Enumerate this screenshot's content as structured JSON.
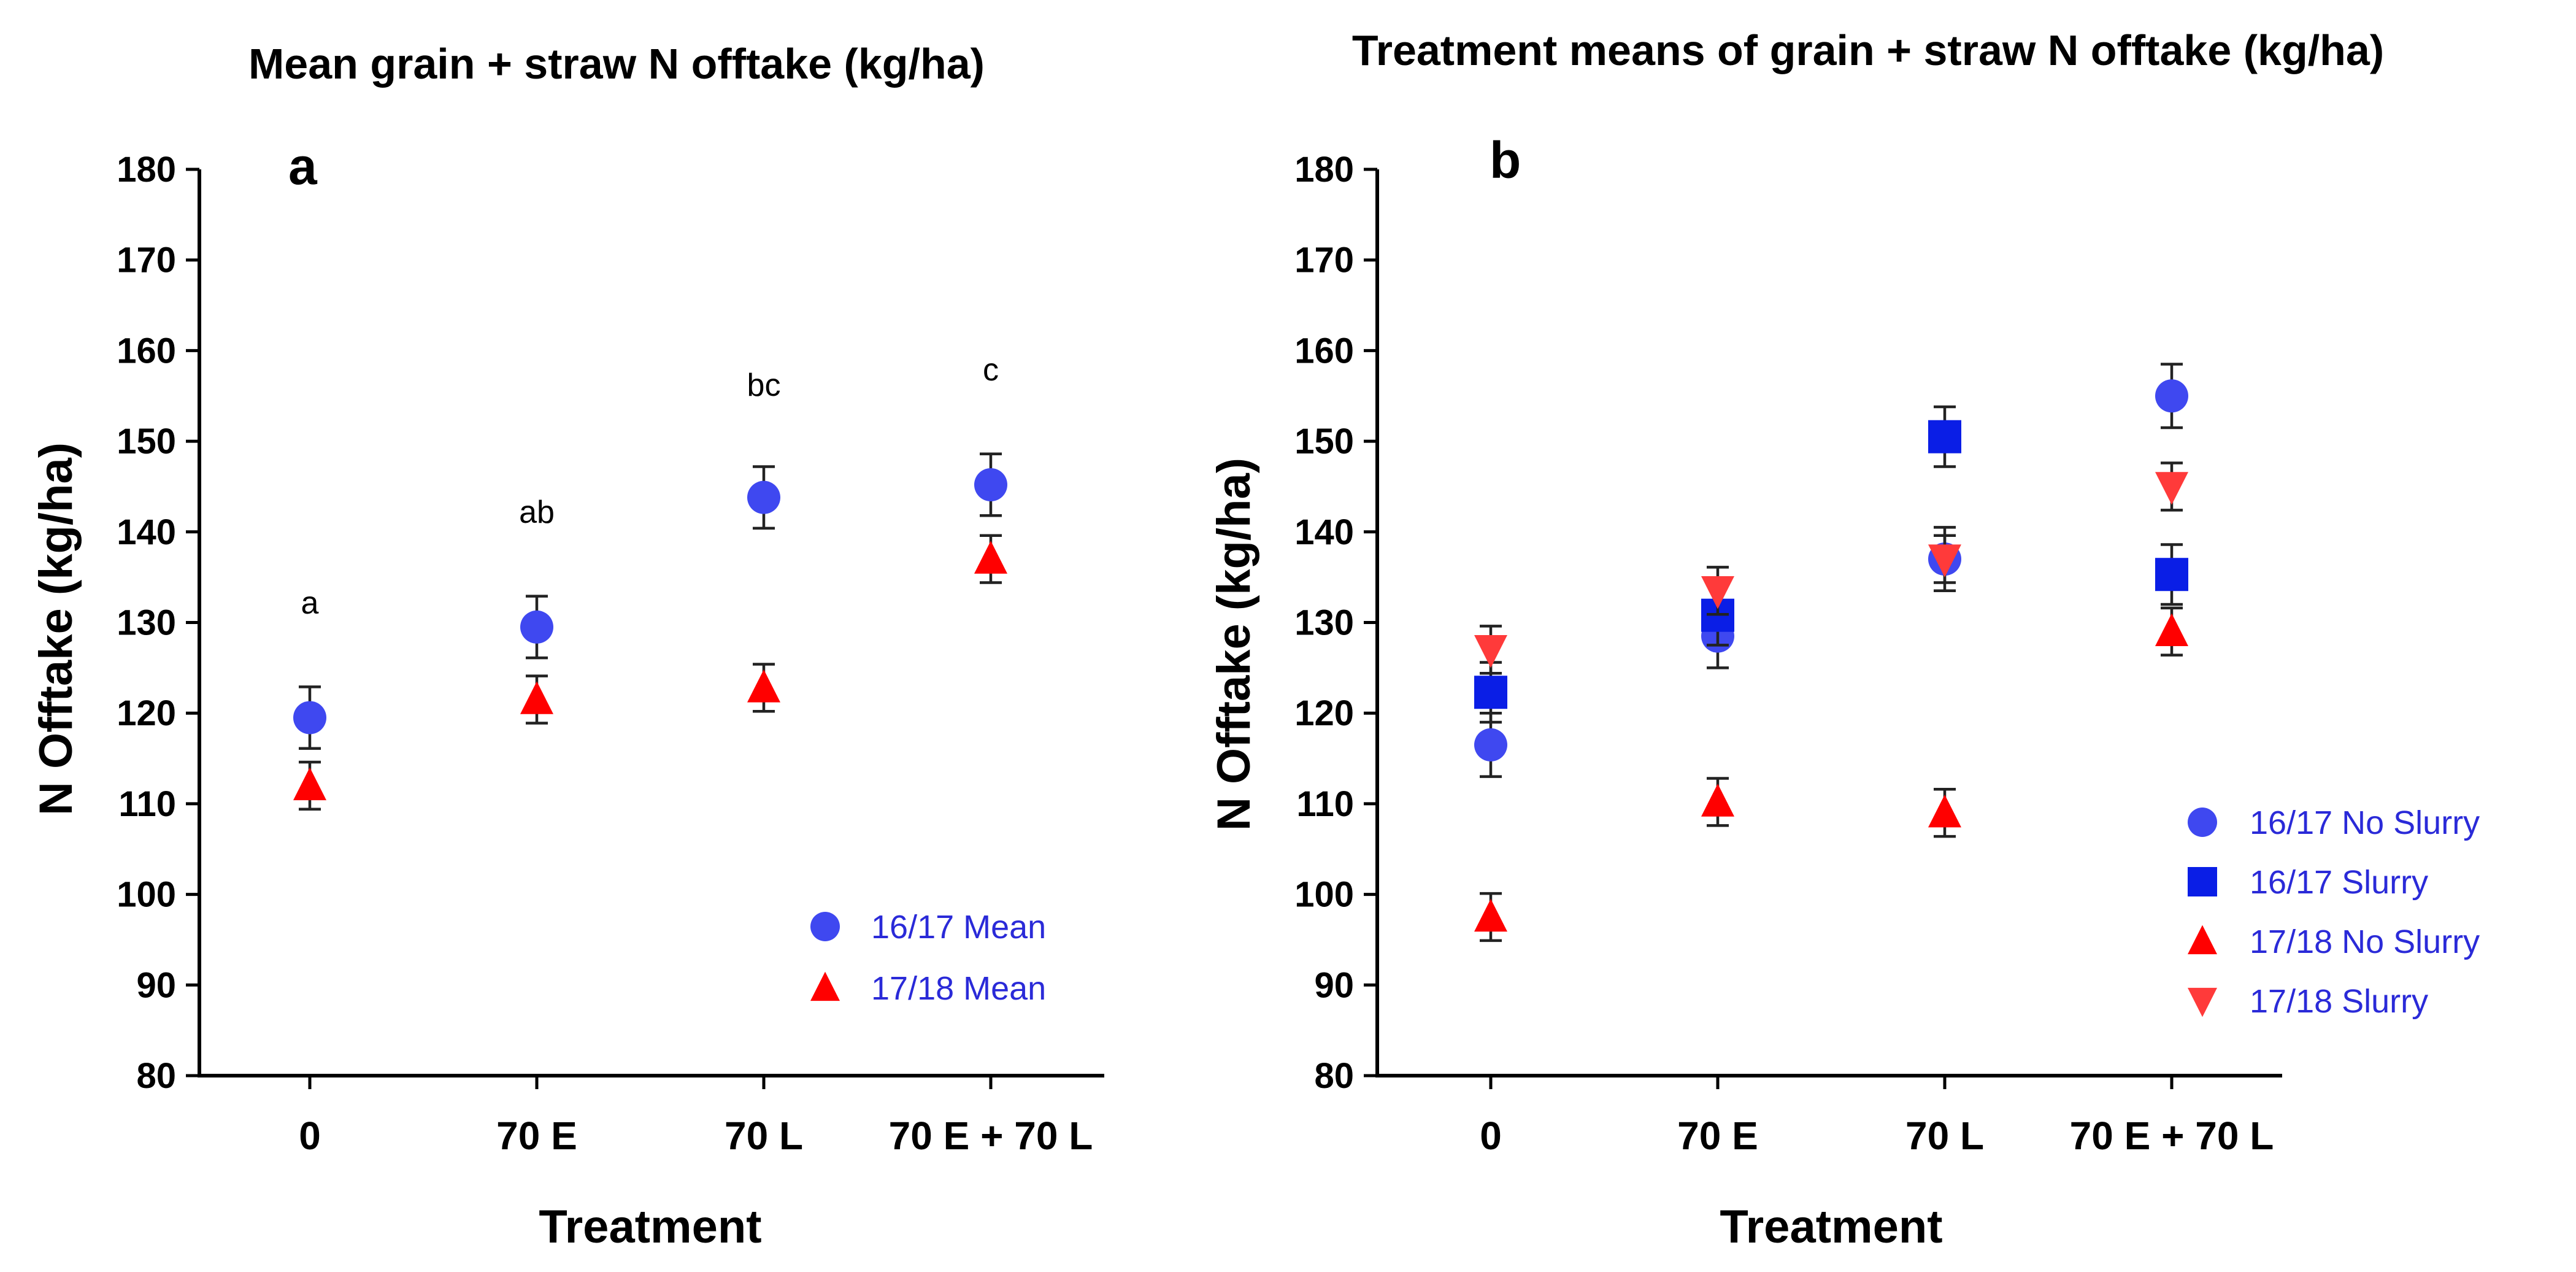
{
  "colors": {
    "circle": "#3f48f0",
    "square": "#0a1ee6",
    "triangle_up": "#ff0000",
    "triangle_down": "#ff3a3a",
    "legend_text": "#2a2ad8"
  },
  "chart_data": [
    {
      "type": "scatter",
      "panel_label": "a",
      "title": "Mean grain + straw N offtake (kg/ha)",
      "xlabel": "Treatment",
      "ylabel": "N Offtake (kg/ha)",
      "ylim": [
        80,
        180
      ],
      "yticks": [
        80,
        90,
        100,
        110,
        120,
        130,
        140,
        150,
        160,
        170,
        180
      ],
      "categories": [
        "0",
        "70 E",
        "70 L",
        "70 E + 70 L"
      ],
      "annotations": [
        "a",
        "ab",
        "bc",
        "c"
      ],
      "legend_position": "bottom-right",
      "series": [
        {
          "name": "16/17 Mean",
          "marker": "circle",
          "values": [
            119.5,
            129.5,
            143.8,
            145.2
          ],
          "errors": [
            3.4,
            3.4,
            3.4,
            3.4
          ]
        },
        {
          "name": "17/18 Mean",
          "marker": "triangle-up",
          "values": [
            112.0,
            121.5,
            122.8,
            137.0
          ],
          "errors": [
            2.6,
            2.6,
            2.6,
            2.6
          ]
        }
      ]
    },
    {
      "type": "scatter",
      "panel_label": "b",
      "title": "Treatment means of grain + straw N offtake (kg/ha)",
      "xlabel": "Treatment",
      "ylabel": "N Offtake (kg/ha)",
      "ylim": [
        80,
        180
      ],
      "yticks": [
        80,
        90,
        100,
        110,
        120,
        130,
        140,
        150,
        160,
        170,
        180
      ],
      "categories": [
        "0",
        "70 E",
        "70 L",
        "70 E + 70 L"
      ],
      "annotations": [],
      "legend_position": "right",
      "series": [
        {
          "name": "16/17 No Slurry",
          "marker": "circle",
          "values": [
            116.5,
            128.5,
            137.0,
            155.0
          ],
          "errors": [
            3.5,
            3.5,
            3.5,
            3.5
          ]
        },
        {
          "name": "16/17 Slurry",
          "marker": "square",
          "values": [
            122.3,
            130.8,
            150.5,
            135.3
          ],
          "errors": [
            3.3,
            3.3,
            3.3,
            3.3
          ]
        },
        {
          "name": "17/18 No Slurry",
          "marker": "triangle-up",
          "values": [
            97.5,
            110.2,
            109.0,
            129.0
          ],
          "errors": [
            2.6,
            2.6,
            2.6,
            2.6
          ]
        },
        {
          "name": "17/18 Slurry",
          "marker": "triangle-down",
          "values": [
            127.0,
            133.5,
            137.0,
            145.0
          ],
          "errors": [
            2.6,
            2.6,
            2.6,
            2.6
          ]
        }
      ]
    }
  ]
}
